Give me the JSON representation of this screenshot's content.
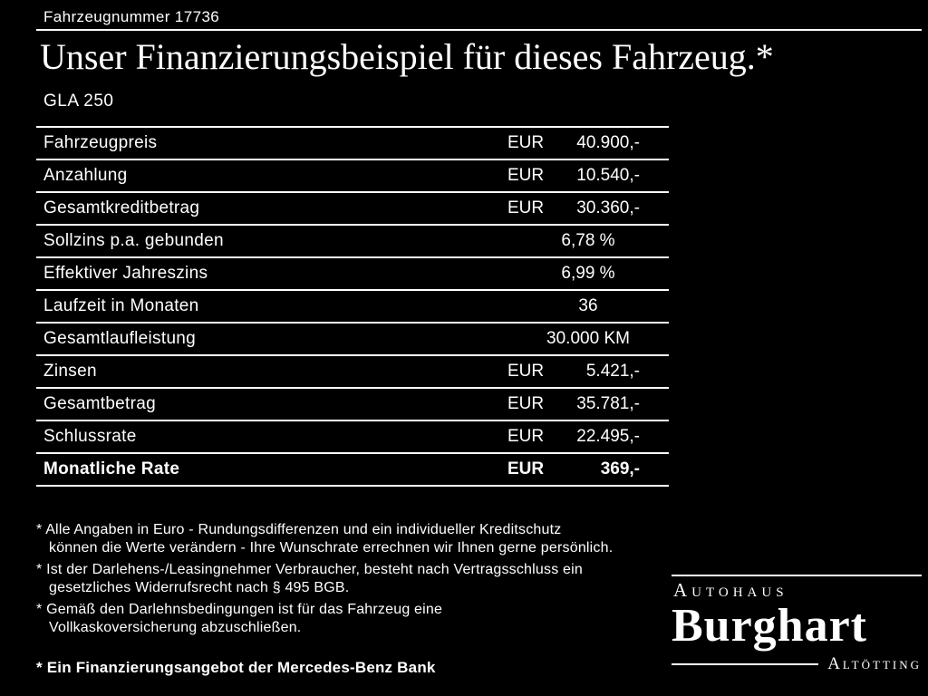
{
  "header": {
    "vehicle_number": "Fahrzeugnummer 17736",
    "title": "Unser Finanzierungsbeispiel für dieses Fahrzeug.*",
    "model": "GLA 250"
  },
  "table": {
    "rows": [
      {
        "label": "Fahrzeugpreis",
        "currency": "EUR",
        "value": "40.900,-"
      },
      {
        "label": "Anzahlung",
        "currency": "EUR",
        "value": "10.540,-"
      },
      {
        "label": "Gesamtkreditbetrag",
        "currency": "EUR",
        "value": "30.360,-"
      },
      {
        "label": "Sollzins p.a. gebunden",
        "currency": "",
        "value": "6,78 %"
      },
      {
        "label": "Effektiver Jahreszins",
        "currency": "",
        "value": "6,99 %"
      },
      {
        "label": "Laufzeit in Monaten",
        "currency": "",
        "value": "36"
      },
      {
        "label": "Gesamtlaufleistung",
        "currency": "",
        "value": "30.000 KM"
      },
      {
        "label": "Zinsen",
        "currency": "EUR",
        "value": "5.421,-"
      },
      {
        "label": "Gesamtbetrag",
        "currency": "EUR",
        "value": "35.781,-"
      },
      {
        "label": "Schlussrate",
        "currency": "EUR",
        "value": "22.495,-"
      },
      {
        "label": "Monatliche Rate",
        "currency": "EUR",
        "value": "369,-"
      }
    ]
  },
  "footnotes": [
    "* Alle Angaben in Euro - Rundungsdifferenzen und ein individueller Kreditschutz\nkönnen die Werte verändern - Ihre Wunschrate errechnen wir Ihnen gerne persönlich.",
    "* Ist der Darlehens-/Leasingnehmer Verbraucher, besteht nach Vertragsschluss ein\ngesetzliches Widerrufsrecht nach § 495 BGB.",
    "* Gemäß den Darlehnsbedingungen ist für das Fahrzeug eine\nVollkaskoversicherung abzuschließen."
  ],
  "footer": {
    "bank_note": "* Ein Finanzierungsangebot der Mercedes-Benz Bank"
  },
  "logo": {
    "top": "Autohaus",
    "name": "Burghart",
    "bottom": "Altötting"
  },
  "colors": {
    "background": "#000000",
    "text": "#ffffff"
  }
}
